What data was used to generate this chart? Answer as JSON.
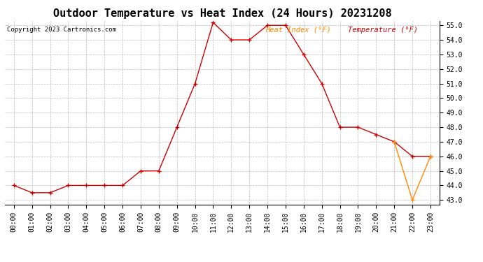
{
  "title": "Outdoor Temperature vs Heat Index (24 Hours) 20231208",
  "copyright": "Copyright 2023 Cartronics.com",
  "legend_heat": "Heat Index (°F)",
  "legend_temp": "Temperature (°F)",
  "hours": [
    "00:00",
    "01:00",
    "02:00",
    "03:00",
    "04:00",
    "05:00",
    "06:00",
    "07:00",
    "08:00",
    "09:00",
    "10:00",
    "11:00",
    "12:00",
    "13:00",
    "14:00",
    "15:00",
    "16:00",
    "17:00",
    "18:00",
    "19:00",
    "20:00",
    "21:00",
    "22:00",
    "23:00"
  ],
  "temperature": [
    44.0,
    43.5,
    43.5,
    44.0,
    44.0,
    44.0,
    44.0,
    45.0,
    45.0,
    48.0,
    51.0,
    55.2,
    54.0,
    54.0,
    55.0,
    55.0,
    53.0,
    51.0,
    48.0,
    48.0,
    47.5,
    47.0,
    46.0,
    46.0
  ],
  "heat_index": [
    null,
    null,
    null,
    null,
    null,
    null,
    null,
    null,
    null,
    null,
    null,
    null,
    null,
    null,
    null,
    null,
    null,
    null,
    null,
    null,
    null,
    47.0,
    43.0,
    46.0
  ],
  "temp_color": "#cc0000",
  "heat_color": "#ff8800",
  "ylim_min": 43.0,
  "ylim_max": 55.0,
  "ytick_step": 1.0,
  "background_color": "#ffffff",
  "grid_color": "#bbbbbb",
  "title_fontsize": 11,
  "tick_fontsize": 7,
  "copyright_fontsize": 6.5,
  "legend_fontsize": 7.5
}
